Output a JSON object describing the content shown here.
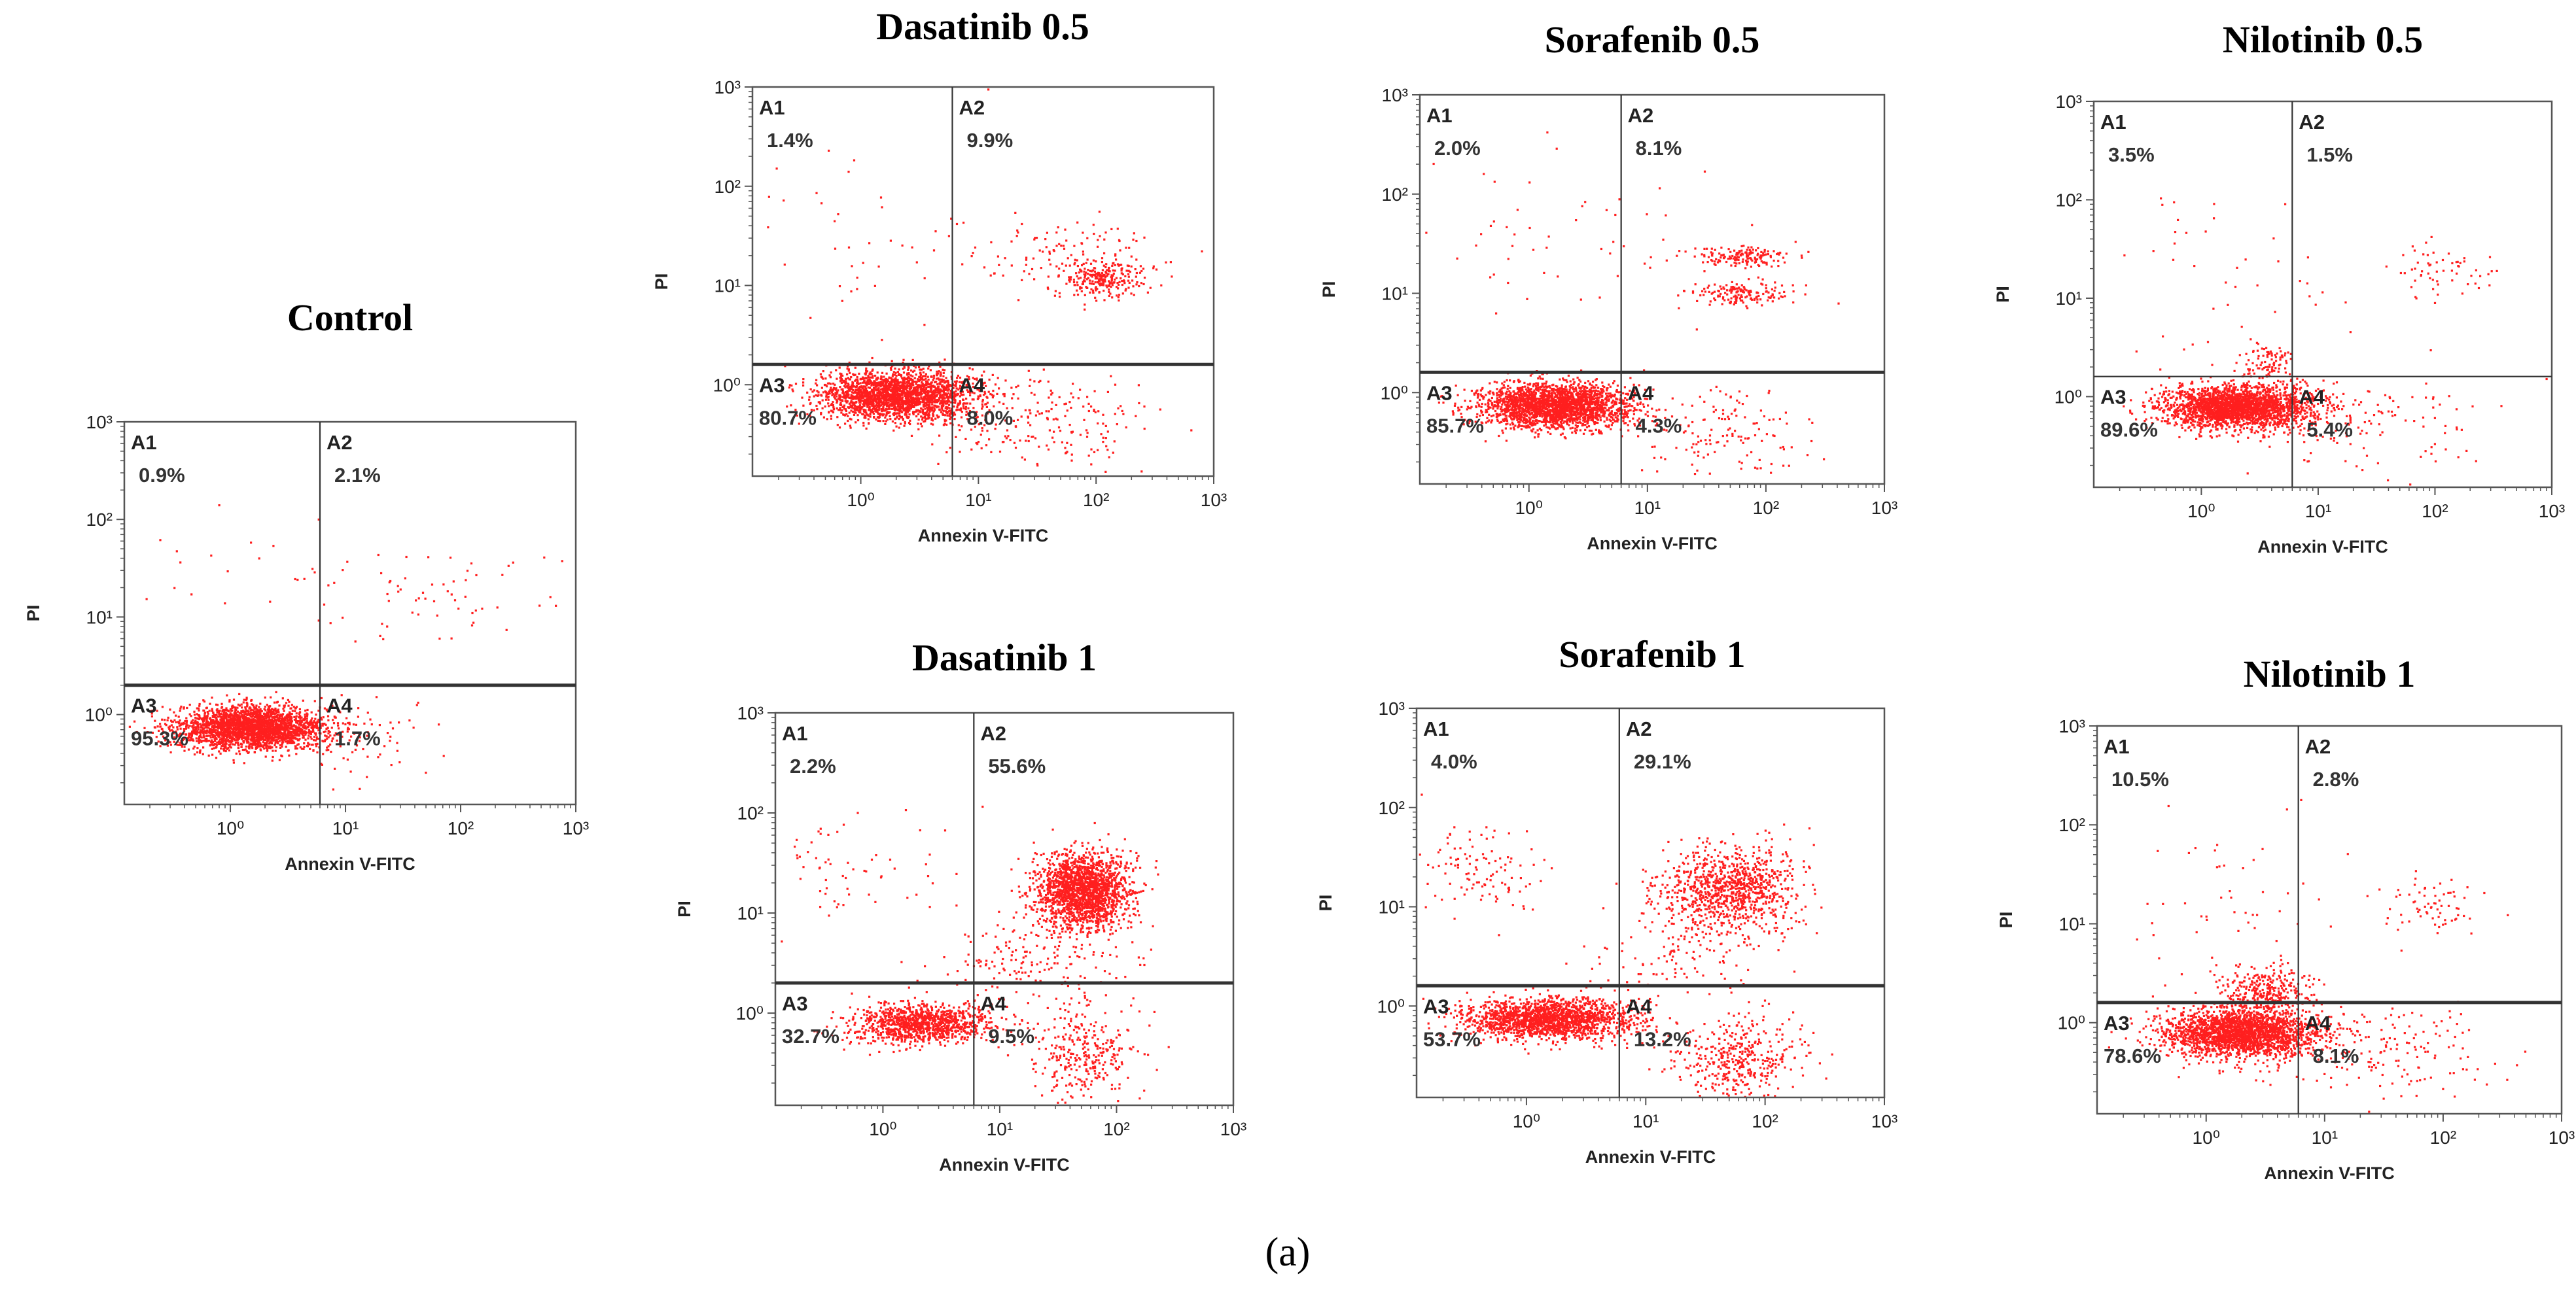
{
  "figure": {
    "caption": "(a)",
    "dot_color": "#ff1f1f",
    "frame_color": "#555555",
    "gate_color": "#333333"
  },
  "chart_data": [
    {
      "id": "control",
      "type": "scatter",
      "title": "Control",
      "xlabel": "Annexin V-FITC",
      "ylabel": "PI",
      "x_scale": "log",
      "y_scale": "log",
      "xlim": [
        0.12,
        1000
      ],
      "ylim": [
        0.12,
        1000
      ],
      "x_ticks": [
        "10⁰",
        "10¹",
        "10²",
        "10³"
      ],
      "y_ticks": [
        "10⁰",
        "10¹",
        "10²",
        "10³"
      ],
      "gate": {
        "x": 6,
        "y": 2,
        "h_line": "bold",
        "v_line": "thin"
      },
      "quadrants": {
        "A1": "0.9%",
        "A2": "2.1%",
        "A3": "95.3%",
        "A4": "1.7%"
      },
      "populations": [
        {
          "cx": 1.5,
          "cy": 0.75,
          "sx": 0.32,
          "sy": 0.11,
          "n": 2600
        },
        {
          "cx": 9,
          "cy": 0.55,
          "sx": 0.35,
          "sy": 0.22,
          "n": 70
        },
        {
          "cx": 60,
          "cy": 20,
          "sx": 0.5,
          "sy": 0.28,
          "n": 60
        },
        {
          "cx": 1.5,
          "cy": 20,
          "sx": 0.6,
          "sy": 0.5,
          "n": 25
        }
      ]
    },
    {
      "id": "dasatinib-05",
      "type": "scatter",
      "title": "Dasatinib 0.5",
      "xlabel": "Annexin V-FITC",
      "ylabel": "PI",
      "x_scale": "log",
      "y_scale": "log",
      "xlim": [
        0.12,
        1000
      ],
      "ylim": [
        0.12,
        1000
      ],
      "x_ticks": [
        "10⁰",
        "10¹",
        "10²",
        "10³"
      ],
      "y_ticks": [
        "10⁰",
        "10¹",
        "10²",
        "10³"
      ],
      "gate": {
        "x": 6,
        "y": 1.6,
        "h_line": "bold",
        "v_line": "thin"
      },
      "quadrants": {
        "A1": "1.4%",
        "A2": "9.9%",
        "A3": "80.7%",
        "A4": "8.0%"
      },
      "populations": [
        {
          "cx": 2.0,
          "cy": 0.8,
          "sx": 0.32,
          "sy": 0.12,
          "n": 2300
        },
        {
          "cx": 30,
          "cy": 0.45,
          "sx": 0.45,
          "sy": 0.25,
          "n": 230
        },
        {
          "cx": 110,
          "cy": 12,
          "sx": 0.18,
          "sy": 0.1,
          "n": 260
        },
        {
          "cx": 40,
          "cy": 20,
          "sx": 0.45,
          "sy": 0.2,
          "n": 110
        },
        {
          "cx": 1.5,
          "cy": 25,
          "sx": 0.6,
          "sy": 0.45,
          "n": 40
        }
      ]
    },
    {
      "id": "sorafenib-05",
      "type": "scatter",
      "title": "Sorafenib  0.5",
      "xlabel": "Annexin V-FITC",
      "ylabel": "PI",
      "x_scale": "log",
      "y_scale": "log",
      "xlim": [
        0.12,
        1000
      ],
      "ylim": [
        0.12,
        1000
      ],
      "x_ticks": [
        "10⁰",
        "10¹",
        "10²",
        "10³"
      ],
      "y_ticks": [
        "10⁰",
        "10¹",
        "10²",
        "10³"
      ],
      "gate": {
        "x": 6,
        "y": 1.6,
        "h_line": "bold",
        "v_line": "thin"
      },
      "quadrants": {
        "A1": "2.0%",
        "A2": "8.1%",
        "A3": "85.7%",
        "A4": "4.3%"
      },
      "populations": [
        {
          "cx": 1.6,
          "cy": 0.75,
          "sx": 0.32,
          "sy": 0.11,
          "n": 2400
        },
        {
          "cx": 40,
          "cy": 0.4,
          "sx": 0.35,
          "sy": 0.25,
          "n": 140
        },
        {
          "cx": 60,
          "cy": 24,
          "sx": 0.22,
          "sy": 0.05,
          "n": 160
        },
        {
          "cx": 60,
          "cy": 10,
          "sx": 0.22,
          "sy": 0.06,
          "n": 160
        },
        {
          "cx": 1.5,
          "cy": 30,
          "sx": 0.6,
          "sy": 0.45,
          "n": 55
        }
      ]
    },
    {
      "id": "nilotinib-05",
      "type": "scatter",
      "title": "Nilotinib 0.5",
      "xlabel": "Annexin V-FITC",
      "ylabel": "PI",
      "x_scale": "log",
      "y_scale": "log",
      "xlim": [
        0.12,
        1000
      ],
      "ylim": [
        0.12,
        1000
      ],
      "x_ticks": [
        "10⁰",
        "10¹",
        "10²",
        "10³"
      ],
      "y_ticks": [
        "10⁰",
        "10¹",
        "10²",
        "10³"
      ],
      "gate": {
        "x": 6,
        "y": 1.6,
        "h_line": "thin",
        "v_line": "thin"
      },
      "quadrants": {
        "A1": "3.5%",
        "A2": "1.5%",
        "A3": "89.6%",
        "A4": "5.4%"
      },
      "populations": [
        {
          "cx": 2.0,
          "cy": 0.8,
          "sx": 0.32,
          "sy": 0.11,
          "n": 2500
        },
        {
          "cx": 3.5,
          "cy": 2.2,
          "sx": 0.12,
          "sy": 0.1,
          "n": 90
        },
        {
          "cx": 30,
          "cy": 0.5,
          "sx": 0.45,
          "sy": 0.25,
          "n": 110
        },
        {
          "cx": 110,
          "cy": 20,
          "sx": 0.2,
          "sy": 0.15,
          "n": 60
        },
        {
          "cx": 1.5,
          "cy": 20,
          "sx": 0.6,
          "sy": 0.5,
          "n": 40
        }
      ]
    },
    {
      "id": "dasatinib-1",
      "type": "scatter",
      "title": "Dasatinib 1",
      "xlabel": "Annexin V-FITC",
      "ylabel": "PI",
      "x_scale": "log",
      "y_scale": "log",
      "xlim": [
        0.12,
        1000
      ],
      "ylim": [
        0.12,
        1000
      ],
      "x_ticks": [
        "10⁰",
        "10¹",
        "10²",
        "10³"
      ],
      "y_ticks": [
        "10⁰",
        "10¹",
        "10²",
        "10³"
      ],
      "gate": {
        "x": 6,
        "y": 2,
        "h_line": "bold",
        "v_line": "thin"
      },
      "quadrants": {
        "A1": "2.2%",
        "A2": "55.6%",
        "A3": "32.7%",
        "A4": "9.5%"
      },
      "populations": [
        {
          "cx": 50,
          "cy": 17,
          "sx": 0.2,
          "sy": 0.18,
          "n": 1900
        },
        {
          "cx": 2.0,
          "cy": 0.8,
          "sx": 0.3,
          "sy": 0.1,
          "n": 1100
        },
        {
          "cx": 50,
          "cy": 0.4,
          "sx": 0.22,
          "sy": 0.25,
          "n": 320
        },
        {
          "cx": 20,
          "cy": 3.5,
          "sx": 0.4,
          "sy": 0.2,
          "n": 160
        },
        {
          "cx": 0.5,
          "cy": 25,
          "sx": 0.4,
          "sy": 0.3,
          "n": 70
        }
      ]
    },
    {
      "id": "sorafenib-1",
      "type": "scatter",
      "title": "Sorafenib  1",
      "xlabel": "Annexin V-FITC",
      "ylabel": "PI",
      "x_scale": "log",
      "y_scale": "log",
      "xlim": [
        0.12,
        1000
      ],
      "ylim": [
        0.12,
        1000
      ],
      "x_ticks": [
        "10⁰",
        "10¹",
        "10²",
        "10³"
      ],
      "y_ticks": [
        "10⁰",
        "10¹",
        "10²",
        "10³"
      ],
      "gate": {
        "x": 6,
        "y": 1.6,
        "h_line": "bold",
        "v_line": "thin"
      },
      "quadrants": {
        "A1": "4.0%",
        "A2": "29.1%",
        "A3": "53.7%",
        "A4": "13.2%"
      },
      "populations": [
        {
          "cx": 1.5,
          "cy": 0.75,
          "sx": 0.35,
          "sy": 0.1,
          "n": 1800
        },
        {
          "cx": 50,
          "cy": 15,
          "sx": 0.3,
          "sy": 0.22,
          "n": 1000
        },
        {
          "cx": 60,
          "cy": 0.3,
          "sx": 0.25,
          "sy": 0.2,
          "n": 400
        },
        {
          "cx": 0.4,
          "cy": 25,
          "sx": 0.3,
          "sy": 0.25,
          "n": 120
        },
        {
          "cx": 20,
          "cy": 3,
          "sx": 0.4,
          "sy": 0.2,
          "n": 100
        }
      ]
    },
    {
      "id": "nilotinib-1",
      "type": "scatter",
      "title": "Nilotinib 1",
      "xlabel": "Annexin V-FITC",
      "ylabel": "PI",
      "x_scale": "log",
      "y_scale": "log",
      "xlim": [
        0.12,
        1000
      ],
      "ylim": [
        0.12,
        1000
      ],
      "x_ticks": [
        "10⁰",
        "10¹",
        "10²",
        "10³"
      ],
      "y_ticks": [
        "10⁰",
        "10¹",
        "10²",
        "10³"
      ],
      "gate": {
        "x": 6,
        "y": 1.6,
        "h_line": "bold",
        "v_line": "thin"
      },
      "quadrants": {
        "A1": "10.5%",
        "A2": "2.8%",
        "A3": "78.6%",
        "A4": "8.1%"
      },
      "populations": [
        {
          "cx": 2.0,
          "cy": 0.8,
          "sx": 0.32,
          "sy": 0.12,
          "n": 2300
        },
        {
          "cx": 3.0,
          "cy": 2.2,
          "sx": 0.18,
          "sy": 0.12,
          "n": 300
        },
        {
          "cx": 30,
          "cy": 0.5,
          "sx": 0.45,
          "sy": 0.25,
          "n": 160
        },
        {
          "cx": 70,
          "cy": 15,
          "sx": 0.25,
          "sy": 0.15,
          "n": 70
        },
        {
          "cx": 1.5,
          "cy": 15,
          "sx": 0.6,
          "sy": 0.5,
          "n": 60
        }
      ]
    }
  ]
}
